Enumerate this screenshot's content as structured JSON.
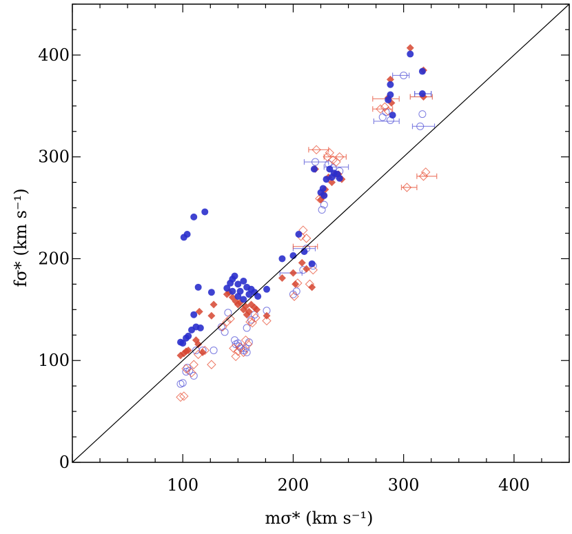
{
  "chart_data": {
    "type": "scatter",
    "title": "",
    "xlabel": "mσ* (km s⁻¹)",
    "ylabel": "fσ* (km s⁻¹)",
    "xlim": [
      0,
      450
    ],
    "ylim": [
      0,
      450
    ],
    "x_ticks": [
      100,
      200,
      300,
      400
    ],
    "y_ticks": [
      0,
      100,
      200,
      300,
      400
    ],
    "x_tick_labels": [
      "100",
      "200",
      "300",
      "400"
    ],
    "y_tick_labels": [
      "0",
      "100",
      "200",
      "300",
      "400"
    ],
    "reference_line": {
      "label": "one-to-one",
      "from": [
        0,
        0
      ],
      "to": [
        450,
        450
      ]
    },
    "colors": {
      "blue": "#2a2fcc",
      "red": "#d64530"
    },
    "series": [
      {
        "name": "filled circles",
        "marker": "circle-filled",
        "color": "#2a2fcc",
        "points": [
          [
            98,
            118
          ],
          [
            100,
            117
          ],
          [
            103,
            122
          ],
          [
            105,
            124
          ],
          [
            108,
            130
          ],
          [
            110,
            145
          ],
          [
            112,
            133
          ],
          [
            114,
            172
          ],
          [
            116,
            132
          ],
          [
            126,
            167
          ],
          [
            101,
            221
          ],
          [
            104,
            224
          ],
          [
            110,
            241
          ],
          [
            120,
            246
          ],
          [
            140,
            171
          ],
          [
            143,
            176
          ],
          [
            145,
            180
          ],
          [
            147,
            183
          ],
          [
            150,
            175
          ],
          [
            152,
            168
          ],
          [
            155,
            178
          ],
          [
            158,
            172
          ],
          [
            160,
            165
          ],
          [
            162,
            170
          ],
          [
            165,
            167
          ],
          [
            168,
            163
          ],
          [
            155,
            160
          ],
          [
            150,
            163
          ],
          [
            176,
            170
          ],
          [
            145,
            168
          ],
          [
            190,
            200
          ],
          [
            200,
            203
          ],
          [
            205,
            224
          ],
          [
            210,
            207
          ],
          [
            217,
            195
          ],
          [
            219,
            288
          ],
          [
            225,
            265
          ],
          [
            227,
            269
          ],
          [
            228,
            262
          ],
          [
            230,
            278
          ],
          [
            233,
            288
          ],
          [
            235,
            280
          ],
          [
            237,
            284
          ],
          [
            240,
            283
          ],
          [
            242,
            279
          ],
          [
            286,
            356
          ],
          [
            288,
            361
          ],
          [
            288,
            371
          ],
          [
            290,
            341
          ],
          [
            306,
            401
          ],
          [
            317,
            384
          ],
          [
            317,
            362
          ]
        ]
      },
      {
        "name": "filled diamonds",
        "marker": "diamond-filled",
        "color": "#d64530",
        "points": [
          [
            98,
            105
          ],
          [
            101,
            107
          ],
          [
            103,
            109
          ],
          [
            105,
            110
          ],
          [
            112,
            120
          ],
          [
            114,
            116
          ],
          [
            115,
            148
          ],
          [
            118,
            108
          ],
          [
            126,
            144
          ],
          [
            128,
            155
          ],
          [
            140,
            165
          ],
          [
            142,
            167
          ],
          [
            145,
            162
          ],
          [
            148,
            158
          ],
          [
            150,
            155
          ],
          [
            152,
            157
          ],
          [
            155,
            150
          ],
          [
            157,
            153
          ],
          [
            160,
            148
          ],
          [
            162,
            155
          ],
          [
            165,
            152
          ],
          [
            167,
            150
          ],
          [
            158,
            145
          ],
          [
            176,
            144
          ],
          [
            190,
            181
          ],
          [
            200,
            186
          ],
          [
            202,
            175
          ],
          [
            208,
            196
          ],
          [
            212,
            190
          ],
          [
            217,
            172
          ],
          [
            220,
            288
          ],
          [
            225,
            258
          ],
          [
            227,
            263
          ],
          [
            229,
            268
          ],
          [
            232,
            280
          ],
          [
            235,
            275
          ],
          [
            238,
            283
          ],
          [
            241,
            283
          ],
          [
            244,
            278
          ],
          [
            286,
            358
          ],
          [
            288,
            376
          ],
          [
            289,
            353
          ],
          [
            306,
            407
          ],
          [
            318,
            385
          ],
          [
            318,
            359
          ]
        ]
      },
      {
        "name": "open circles",
        "marker": "circle-open",
        "color": "#5a5ad8",
        "points": [
          [
            98,
            77
          ],
          [
            100,
            78
          ],
          [
            103,
            89
          ],
          [
            104,
            93
          ],
          [
            106,
            90
          ],
          [
            110,
            85
          ],
          [
            112,
            110
          ],
          [
            118,
            110
          ],
          [
            128,
            110
          ],
          [
            135,
            133
          ],
          [
            138,
            128
          ],
          [
            141,
            147
          ],
          [
            147,
            120
          ],
          [
            148,
            116
          ],
          [
            150,
            117
          ],
          [
            151,
            114
          ],
          [
            153,
            112
          ],
          [
            155,
            110
          ],
          [
            157,
            112
          ],
          [
            158,
            108
          ],
          [
            160,
            118
          ],
          [
            158,
            132
          ],
          [
            162,
            140
          ],
          [
            165,
            145
          ],
          [
            176,
            149
          ],
          [
            200,
            165
          ],
          [
            203,
            168
          ],
          [
            209,
            189
          ],
          [
            212,
            210
          ],
          [
            218,
            193
          ],
          [
            220,
            295
          ],
          [
            226,
            248
          ],
          [
            228,
            253
          ],
          [
            232,
            293
          ],
          [
            236,
            289
          ],
          [
            240,
            282
          ],
          [
            242,
            286
          ],
          [
            281,
            339
          ],
          [
            284,
            344
          ],
          [
            288,
            336
          ],
          [
            300,
            380
          ],
          [
            315,
            330
          ],
          [
            317,
            342
          ]
        ]
      },
      {
        "name": "open diamonds",
        "marker": "diamond-open",
        "color": "#e8543a",
        "points": [
          [
            98,
            64
          ],
          [
            101,
            65
          ],
          [
            103,
            92
          ],
          [
            108,
            88
          ],
          [
            110,
            96
          ],
          [
            114,
            106
          ],
          [
            120,
            110
          ],
          [
            126,
            96
          ],
          [
            136,
            133
          ],
          [
            140,
            138
          ],
          [
            143,
            141
          ],
          [
            146,
            112
          ],
          [
            148,
            104
          ],
          [
            150,
            109
          ],
          [
            152,
            113
          ],
          [
            155,
            108
          ],
          [
            157,
            120
          ],
          [
            159,
            116
          ],
          [
            161,
            138
          ],
          [
            163,
            137
          ],
          [
            166,
            142
          ],
          [
            176,
            139
          ],
          [
            201,
            163
          ],
          [
            204,
            176
          ],
          [
            207,
            222
          ],
          [
            209,
            228
          ],
          [
            212,
            220
          ],
          [
            215,
            175
          ],
          [
            218,
            189
          ],
          [
            221,
            307
          ],
          [
            224,
            259
          ],
          [
            227,
            262
          ],
          [
            231,
            300
          ],
          [
            233,
            304
          ],
          [
            236,
            297
          ],
          [
            239,
            295
          ],
          [
            242,
            300
          ],
          [
            279,
            347
          ],
          [
            283,
            349
          ],
          [
            286,
            345
          ],
          [
            303,
            270
          ],
          [
            318,
            281
          ],
          [
            320,
            285
          ]
        ]
      }
    ],
    "error_bars": [
      {
        "series": "open circles",
        "y": 380,
        "xmin": 290,
        "xmax": 305
      },
      {
        "series": "open circles",
        "y": 330,
        "xmin": 308,
        "xmax": 328
      },
      {
        "series": "open circles",
        "y": 335,
        "xmin": 273,
        "xmax": 296
      },
      {
        "series": "open circles",
        "y": 295,
        "xmin": 210,
        "xmax": 232
      },
      {
        "series": "open circles",
        "y": 290,
        "xmin": 228,
        "xmax": 250
      },
      {
        "series": "open circles",
        "y": 210,
        "xmin": 200,
        "xmax": 220
      },
      {
        "series": "open circles",
        "y": 186,
        "xmin": 188,
        "xmax": 208
      },
      {
        "series": "open diamonds",
        "y": 307,
        "xmin": 214,
        "xmax": 232
      },
      {
        "series": "open diamonds",
        "y": 300,
        "xmin": 228,
        "xmax": 248
      },
      {
        "series": "open diamonds",
        "y": 347,
        "xmin": 272,
        "xmax": 290
      },
      {
        "series": "open diamonds",
        "y": 270,
        "xmin": 298,
        "xmax": 312
      },
      {
        "series": "open diamonds",
        "y": 281,
        "xmin": 312,
        "xmax": 330
      },
      {
        "series": "open diamonds",
        "y": 357,
        "xmin": 272,
        "xmax": 296
      },
      {
        "series": "open diamonds",
        "y": 212,
        "xmin": 200,
        "xmax": 222
      },
      {
        "series": "filled circles",
        "y": 362,
        "xmin": 310,
        "xmax": 325
      },
      {
        "series": "filled diamonds",
        "y": 359,
        "xmin": 306,
        "xmax": 326
      }
    ]
  }
}
